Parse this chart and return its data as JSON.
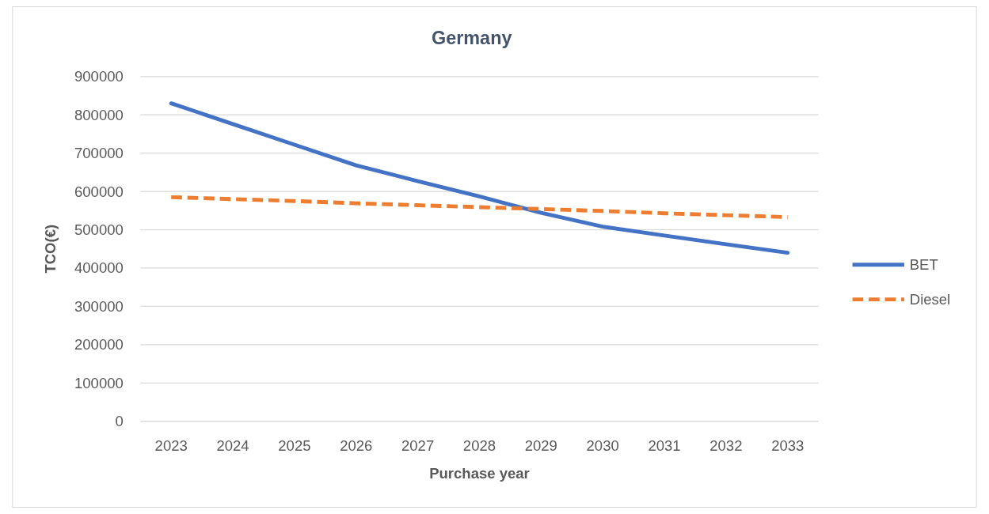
{
  "chart_data": {
    "type": "line",
    "title": "Germany",
    "xlabel": "Purchase year",
    "ylabel": "TCO(€)",
    "categories": [
      "2023",
      "2024",
      "2025",
      "2026",
      "2027",
      "2028",
      "2029",
      "2030",
      "2031",
      "2032",
      "2033"
    ],
    "series": [
      {
        "name": "BET",
        "color": "#4472c4",
        "line_style": "solid",
        "values": [
          830000,
          776000,
          722000,
          668000,
          627000,
          587000,
          544000,
          508000,
          485000,
          462000,
          440000
        ]
      },
      {
        "name": "Diesel",
        "color": "#ed7d31",
        "line_style": "dashed",
        "values": [
          585000,
          580000,
          575000,
          569000,
          564000,
          559000,
          554000,
          549000,
          543000,
          538000,
          533000
        ]
      }
    ],
    "ylim": [
      0,
      900000
    ],
    "yticks": [
      0,
      100000,
      200000,
      300000,
      400000,
      500000,
      600000,
      700000,
      800000,
      900000
    ],
    "grid": "y",
    "legend": "right",
    "marker": "none"
  }
}
